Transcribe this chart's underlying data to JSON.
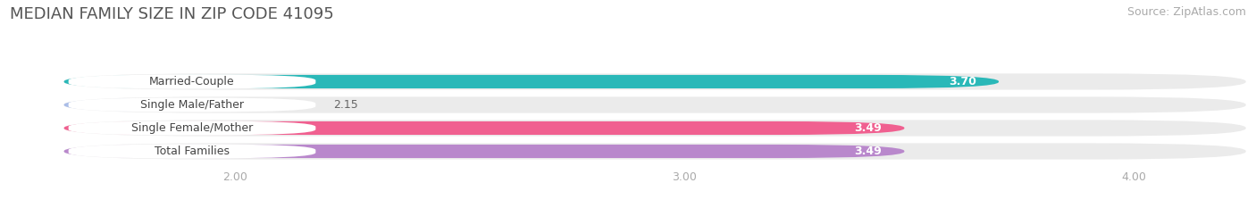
{
  "title": "MEDIAN FAMILY SIZE IN ZIP CODE 41095",
  "source": "Source: ZipAtlas.com",
  "categories": [
    "Married-Couple",
    "Single Male/Father",
    "Single Female/Mother",
    "Total Families"
  ],
  "values": [
    3.7,
    2.15,
    3.49,
    3.49
  ],
  "bar_colors": [
    "#2ab8b8",
    "#aabde8",
    "#f06090",
    "#b988cc"
  ],
  "bar_label_colors": [
    "white",
    "#555555",
    "white",
    "white"
  ],
  "xlim_min": 1.5,
  "xlim_max": 4.25,
  "xaxis_min": 1.62,
  "xticks": [
    2.0,
    3.0,
    4.0
  ],
  "xtick_labels": [
    "2.00",
    "3.00",
    "4.00"
  ],
  "background_color": "#ffffff",
  "bar_background_color": "#ebebeb",
  "title_fontsize": 13,
  "source_fontsize": 9,
  "label_fontsize": 9,
  "value_fontsize": 9,
  "tick_fontsize": 9
}
